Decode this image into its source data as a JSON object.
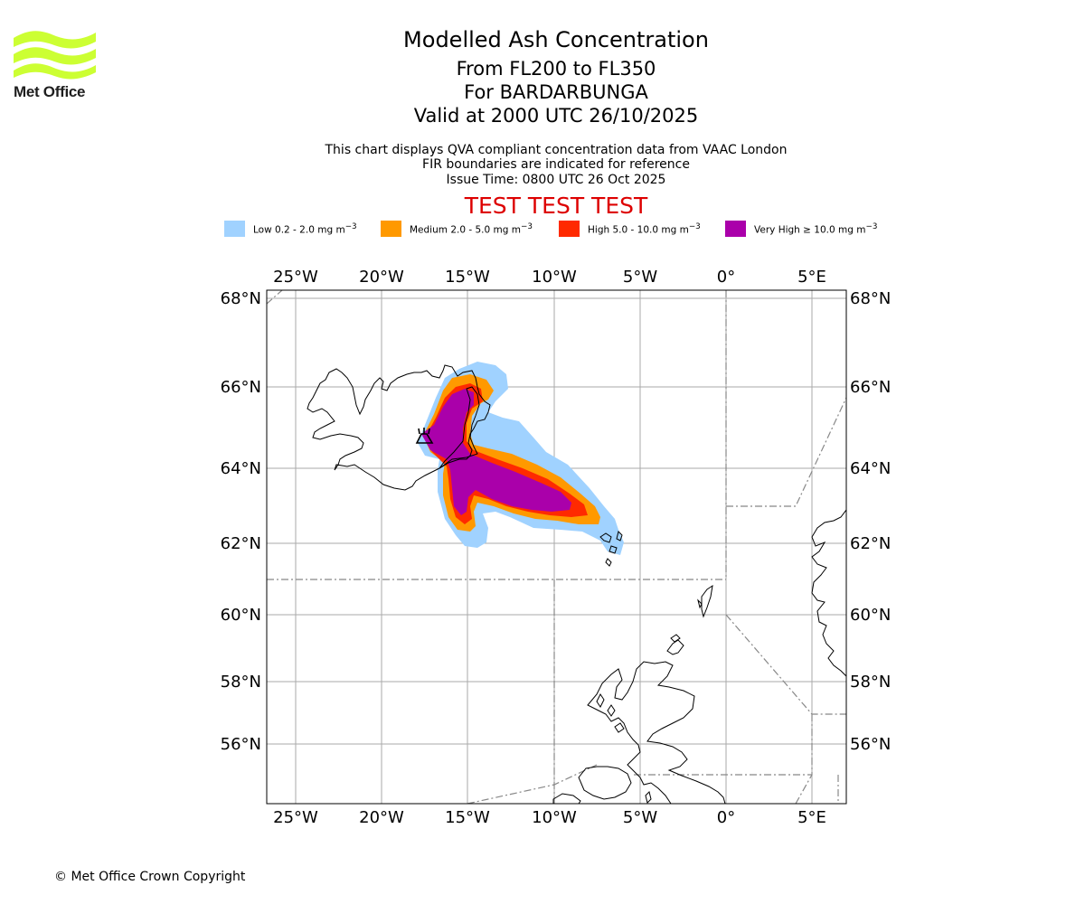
{
  "logo": {
    "text": "Met Office",
    "color": "#ccff33"
  },
  "header": {
    "title": "Modelled Ash Concentration",
    "level_range": "From FL200 to FL350",
    "volcano": "For BARDARBUNGA",
    "valid_time": "Valid at 2000 UTC 26/10/2025",
    "info_lines": [
      "This chart displays QVA compliant concentration data from VAAC London",
      "FIR boundaries are indicated for reference",
      "Issue Time: 0800 UTC 26 Oct 2025"
    ],
    "test_banner": "TEST TEST TEST",
    "test_color": "#dd0000"
  },
  "legend": [
    {
      "label": "Low 0.2 - 2.0 mg m",
      "sup": "−3",
      "color": "#a0d2ff"
    },
    {
      "label": "Medium 2.0 - 5.0 mg m",
      "sup": "−3",
      "color": "#ff9900"
    },
    {
      "label": "High 5.0 - 10.0 mg m",
      "sup": "−3",
      "color": "#ff2a00"
    },
    {
      "label": "Very High  ≥  10.0 mg m",
      "sup": "−3",
      "color": "#aa00aa"
    }
  ],
  "map": {
    "lon_labels": [
      "25°W",
      "20°W",
      "15°W",
      "10°W",
      "5°W",
      "0°",
      "5°E"
    ],
    "lat_labels": [
      "68°N",
      "66°N",
      "64°N",
      "62°N",
      "60°N",
      "58°N",
      "56°N"
    ],
    "volcano_marker": "volcano-symbol"
  },
  "footer": {
    "copyright": "© Met Office Crown Copyright"
  }
}
